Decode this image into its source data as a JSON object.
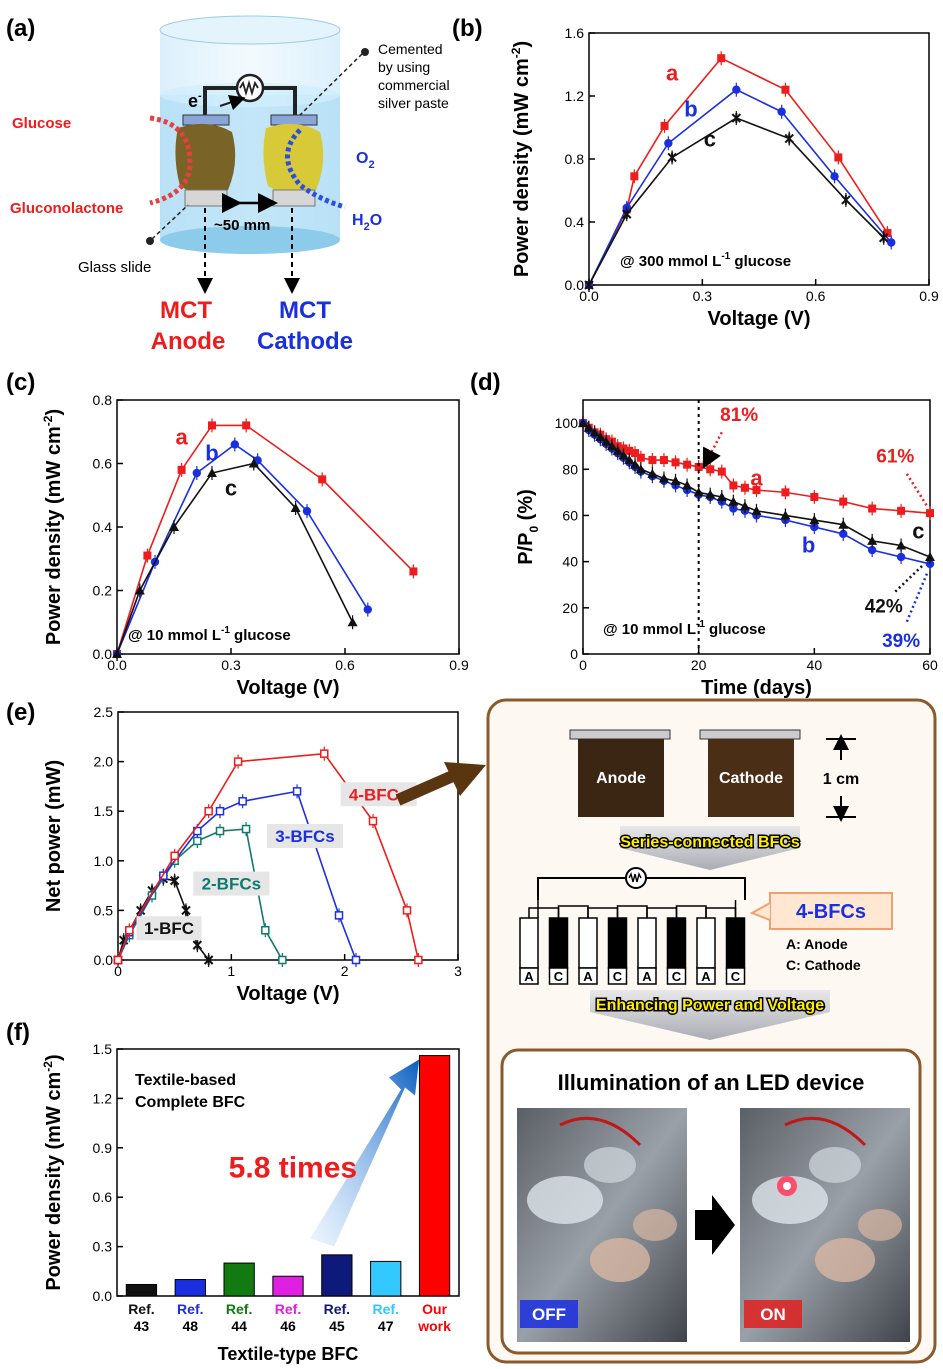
{
  "panels": {
    "a": {
      "label": "(a)",
      "electron": "e",
      "electron_sup": "-",
      "cemented_lines": [
        "Cemented",
        "by using",
        "commercial",
        "silver paste"
      ],
      "glucose": "Glucose",
      "gluconolactone": "Gluconolactone",
      "o2": "O",
      "o2_sub": "2",
      "h2o": "H",
      "h2o_sub": "2",
      "h2o_end": "O",
      "distance": "~50 mm",
      "glass_slide": "Glass slide",
      "anode_lines": [
        "MCT",
        "Anode"
      ],
      "cathode_lines": [
        "MCT",
        "Cathode"
      ]
    },
    "b": {
      "label": "(b)"
    },
    "c": {
      "label": "(c)"
    },
    "d": {
      "label": "(d)"
    },
    "e": {
      "label": "(e)"
    },
    "f": {
      "label": "(f)"
    },
    "schematic": {
      "anode": "Anode",
      "cathode": "Cathode",
      "scale": "1 cm",
      "banner1": "Series-connected BFCs",
      "callout": "4-BFCs",
      "cell_letters": [
        "A",
        "C",
        "A",
        "C",
        "A",
        "C",
        "A",
        "C"
      ],
      "legend_a": "A: Anode",
      "legend_c": "C: Cathode",
      "banner2": "Enhancing Power and Voltage",
      "led_title": "Illumination of an LED device",
      "off": "OFF",
      "on": "ON"
    }
  },
  "colors": {
    "a": "#ee1c1c",
    "b": "#1a2fe0",
    "c": "#111111",
    "blue": "#1a2fe0",
    "green": "#117a6e",
    "red": "#ee1c1c"
  },
  "chart_data": [
    {
      "id": "b",
      "type": "line",
      "xlabel": "Voltage (V)",
      "ylabel": "Power density (mW cm",
      "ylabel_sup": "-2",
      "ylabel_end": ")",
      "xlim": [
        0,
        0.9
      ],
      "ylim": [
        0,
        1.6
      ],
      "xticks": [
        "0.0",
        "0.3",
        "0.6",
        "0.9"
      ],
      "yticks": [
        "0.0",
        "0.4",
        "0.8",
        "1.2",
        "1.6"
      ],
      "annotation": "@ 300 mmol L",
      "annotation_sup": "-1",
      "annotation_end": " glucose",
      "series": [
        {
          "name": "a",
          "x": [
            0,
            0.1,
            0.12,
            0.2,
            0.35,
            0.52,
            0.66,
            0.79
          ],
          "y": [
            0,
            0.48,
            0.69,
            1.01,
            1.44,
            1.24,
            0.81,
            0.33
          ]
        },
        {
          "name": "b",
          "x": [
            0,
            0.1,
            0.21,
            0.39,
            0.51,
            0.65,
            0.8
          ],
          "y": [
            0,
            0.49,
            0.9,
            1.24,
            1.1,
            0.69,
            0.27
          ]
        },
        {
          "name": "c",
          "x": [
            0,
            0.1,
            0.22,
            0.39,
            0.53,
            0.68,
            0.78
          ],
          "y": [
            0,
            0.45,
            0.81,
            1.06,
            0.93,
            0.54,
            0.3
          ]
        }
      ]
    },
    {
      "id": "c",
      "type": "line",
      "xlabel": "Voltage (V)",
      "ylabel": "Power density (mW cm",
      "ylabel_sup": "-2",
      "ylabel_end": ")",
      "xlim": [
        0,
        0.9
      ],
      "ylim": [
        0,
        0.8
      ],
      "xticks": [
        "0.0",
        "0.3",
        "0.6",
        "0.9"
      ],
      "yticks": [
        "0.0",
        "0.2",
        "0.4",
        "0.6",
        "0.8"
      ],
      "annotation": "@ 10 mmol L",
      "annotation_sup": "-1",
      "annotation_end": " glucose",
      "series": [
        {
          "name": "a",
          "x": [
            0,
            0.08,
            0.17,
            0.25,
            0.34,
            0.54,
            0.78
          ],
          "y": [
            0,
            0.31,
            0.58,
            0.72,
            0.72,
            0.55,
            0.26
          ]
        },
        {
          "name": "b",
          "x": [
            0,
            0.1,
            0.21,
            0.31,
            0.37,
            0.5,
            0.66
          ],
          "y": [
            0,
            0.29,
            0.57,
            0.66,
            0.61,
            0.45,
            0.14
          ]
        },
        {
          "name": "c",
          "x": [
            0,
            0.06,
            0.15,
            0.25,
            0.36,
            0.47,
            0.62
          ],
          "y": [
            0,
            0.2,
            0.4,
            0.57,
            0.6,
            0.46,
            0.1
          ]
        }
      ]
    },
    {
      "id": "d",
      "type": "line",
      "xlabel": "Time (days)",
      "ylabel": "P/P",
      "ylabel_sub": "0",
      "ylabel_end": " (%)",
      "xlim": [
        0,
        60
      ],
      "ylim": [
        0,
        110
      ],
      "xticks": [
        "0",
        "20",
        "40",
        "60"
      ],
      "yticks": [
        "0",
        "20",
        "40",
        "60",
        "80",
        "100"
      ],
      "vline": 20,
      "annotation": "@ 10 mmol L",
      "annotation_sup": "-1",
      "annotation_end": " glucose",
      "callouts": [
        "81%",
        "61%",
        "42%",
        "39%"
      ],
      "series": [
        {
          "name": "a",
          "x": [
            0,
            1,
            2,
            3,
            4,
            5,
            6,
            7,
            8,
            9,
            10,
            12,
            14,
            16,
            18,
            20,
            22,
            24,
            26,
            28,
            30,
            35,
            40,
            45,
            50,
            55,
            60
          ],
          "y": [
            100,
            98,
            96,
            95,
            93,
            92,
            90,
            89,
            88,
            87,
            85,
            84,
            84,
            83,
            82,
            81,
            80,
            79,
            73,
            72,
            71,
            70,
            68,
            66,
            63,
            62,
            61
          ]
        },
        {
          "name": "b",
          "x": [
            0,
            1,
            2,
            3,
            4,
            5,
            6,
            7,
            8,
            9,
            10,
            12,
            14,
            16,
            18,
            20,
            22,
            24,
            26,
            28,
            30,
            35,
            40,
            45,
            50,
            55,
            60
          ],
          "y": [
            100,
            97,
            95,
            93,
            91,
            89,
            87,
            85,
            83,
            81,
            79,
            77,
            75,
            73,
            71,
            69,
            68,
            66,
            63,
            62,
            60,
            58,
            55,
            52,
            45,
            42,
            39
          ]
        },
        {
          "name": "c",
          "x": [
            0,
            1,
            2,
            3,
            4,
            5,
            6,
            7,
            8,
            9,
            10,
            12,
            14,
            16,
            18,
            20,
            22,
            24,
            26,
            28,
            30,
            35,
            40,
            45,
            50,
            55,
            60
          ],
          "y": [
            100,
            98,
            96,
            94,
            92,
            90,
            88,
            86,
            84,
            82,
            80,
            78,
            76,
            75,
            73,
            70,
            69,
            68,
            66,
            64,
            62,
            60,
            58,
            56,
            49,
            47,
            42
          ]
        }
      ]
    },
    {
      "id": "e",
      "type": "line",
      "xlabel": "Voltage (V)",
      "ylabel": "Net power (mW)",
      "xlim": [
        0,
        3
      ],
      "ylim": [
        0,
        2.5
      ],
      "xticks": [
        "0",
        "1",
        "2",
        "3"
      ],
      "yticks": [
        "0.0",
        "0.5",
        "1.0",
        "1.5",
        "2.0",
        "2.5"
      ],
      "series": [
        {
          "name": "1-BFC",
          "x": [
            0,
            0.05,
            0.2,
            0.3,
            0.4,
            0.5,
            0.6,
            0.7,
            0.8
          ],
          "y": [
            0,
            0.2,
            0.5,
            0.7,
            0.82,
            0.8,
            0.5,
            0.15,
            0
          ]
        },
        {
          "name": "2-BFCs",
          "x": [
            0,
            0.1,
            0.3,
            0.5,
            0.7,
            0.9,
            1.13,
            1.3,
            1.45
          ],
          "y": [
            0,
            0.25,
            0.65,
            1.0,
            1.2,
            1.3,
            1.32,
            0.3,
            0
          ]
        },
        {
          "name": "3-BFCs",
          "x": [
            0,
            0.1,
            0.4,
            0.7,
            0.9,
            1.1,
            1.58,
            1.95,
            2.1
          ],
          "y": [
            0,
            0.28,
            0.85,
            1.3,
            1.5,
            1.6,
            1.7,
            0.45,
            0
          ]
        },
        {
          "name": "4-BFCs",
          "x": [
            0,
            0.1,
            0.5,
            0.8,
            1.06,
            1.82,
            2.25,
            2.55,
            2.65
          ],
          "y": [
            0,
            0.3,
            1.05,
            1.5,
            2.0,
            2.08,
            1.4,
            0.5,
            0
          ]
        }
      ]
    },
    {
      "id": "f",
      "type": "bar",
      "xlabel": "Textile-type BFC",
      "ylabel": "Power density (mW cm",
      "ylabel_sup": "-2",
      "ylabel_end": ")",
      "ylim": [
        0,
        1.5
      ],
      "yticks": [
        "0.0",
        "0.3",
        "0.6",
        "0.9",
        "1.2",
        "1.5"
      ],
      "box_text": [
        "Textile-based",
        "Complete BFC"
      ],
      "arrow_label": "5.8 times",
      "categories": [
        [
          "Ref.",
          "43"
        ],
        [
          "Ref.",
          "48"
        ],
        [
          "Ref.",
          "44"
        ],
        [
          "Ref.",
          "46"
        ],
        [
          "Ref.",
          "45"
        ],
        [
          "Ref.",
          "47"
        ],
        [
          "Our",
          "work"
        ]
      ],
      "values": [
        0.07,
        0.1,
        0.2,
        0.12,
        0.25,
        0.21,
        1.46
      ],
      "colors": [
        "#111111",
        "#1a2fe0",
        "#117a11",
        "#e020e0",
        "#0d1a7a",
        "#33c8ff",
        "#ff0000"
      ]
    }
  ]
}
